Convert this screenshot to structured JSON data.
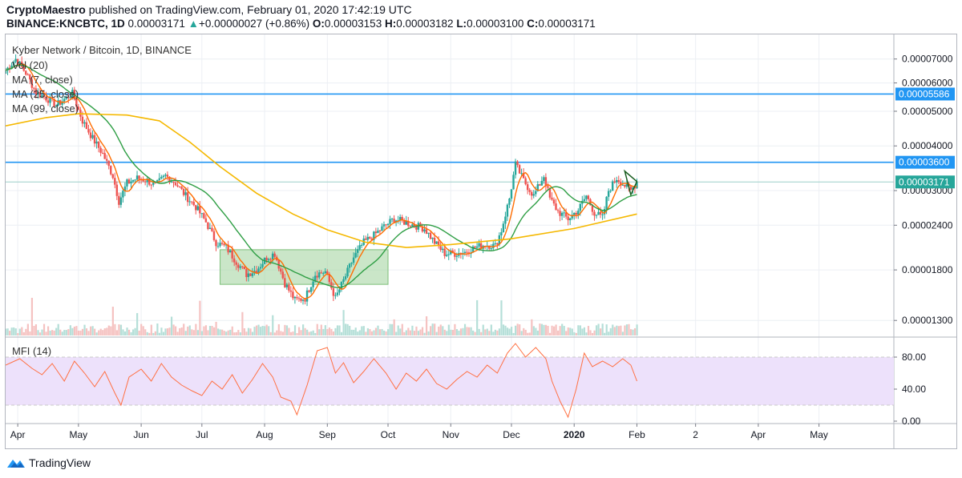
{
  "header": {
    "author": "CryptoMaestro",
    "published_text": "published on TradingView.com, February 01, 2020 17:42:19 UTC",
    "symbol": "BINANCE:KNCBTC, 1D",
    "last": "0.00003171",
    "change_arrow": "▲",
    "change": "+0.00000027 (+0.86%)",
    "o_label": "O:",
    "o": "0.00003153",
    "h_label": "H:",
    "h": "0.00003182",
    "l_label": "L:",
    "l": "0.00003100",
    "c_label": "C:",
    "c": "0.00003171"
  },
  "legend": {
    "title": "Kyber Network / Bitcoin, 1D, BINANCE",
    "vol": "Vol (20)",
    "ma7": "MA (7, close)",
    "ma25": "MA (25, close)",
    "ma99": "MA (99, close)",
    "mfi": "MFI (14)"
  },
  "footer": {
    "brand": "TradingView"
  },
  "colors": {
    "up": "#26a69a",
    "down": "#ef5350",
    "ma7": "#ff6d00",
    "ma25": "#2e9e44",
    "ma99": "#f5b800",
    "hline": "#2196f3",
    "mfi": "#ff7043",
    "mfi_band": "#ede1fb",
    "box": "#9fd29a",
    "wedge": "#1a5e20"
  },
  "chart_data": {
    "type": "candlestick",
    "price_axis": {
      "scale": "log",
      "ticks": [
        1.3e-05,
        1.8e-05,
        2.4e-05,
        3e-05,
        4e-05,
        5e-05,
        6e-05,
        7e-05
      ],
      "tick_labels": [
        "0.00001300",
        "0.00001800",
        "0.00002400",
        "0.00003000",
        "0.00004000",
        "0.00005000",
        "0.00006000",
        "0.00007000"
      ],
      "range": [
        1.18e-05,
        8.2e-05
      ]
    },
    "time_axis": {
      "range": [
        "2019-03-26",
        "2020-06-07"
      ],
      "ticks": [
        {
          "date": "2019-04-01",
          "label": "Apr"
        },
        {
          "date": "2019-05-01",
          "label": "May"
        },
        {
          "date": "2019-06-01",
          "label": "Jun"
        },
        {
          "date": "2019-07-01",
          "label": "Jul"
        },
        {
          "date": "2019-08-01",
          "label": "Aug"
        },
        {
          "date": "2019-09-01",
          "label": "Sep"
        },
        {
          "date": "2019-10-01",
          "label": "Oct"
        },
        {
          "date": "2019-11-01",
          "label": "Nov"
        },
        {
          "date": "2019-12-01",
          "label": "Dec"
        },
        {
          "date": "2020-01-01",
          "label": "2020"
        },
        {
          "date": "2020-02-01",
          "label": "Feb"
        },
        {
          "date": "2020-03-01",
          "label": "2"
        },
        {
          "date": "2020-04-01",
          "label": "Apr"
        },
        {
          "date": "2020-05-01",
          "label": "May"
        }
      ]
    },
    "horizontal_lines": [
      {
        "value": 5.586e-05,
        "label": "0.00005586"
      },
      {
        "value": 3.6e-05,
        "label": "0.00003600"
      }
    ],
    "last_price": {
      "value": 3.171e-05,
      "label": "0.00003171"
    },
    "close_anchors": [
      [
        "2019-03-26",
        6.5e-05
      ],
      [
        "2019-03-31",
        7e-05
      ],
      [
        "2019-04-05",
        6.4e-05
      ],
      [
        "2019-04-10",
        5.65e-05
      ],
      [
        "2019-04-15",
        5.45e-05
      ],
      [
        "2019-04-20",
        5.2e-05
      ],
      [
        "2019-04-25",
        5.45e-05
      ],
      [
        "2019-04-28",
        5.6e-05
      ],
      [
        "2019-05-03",
        4.7e-05
      ],
      [
        "2019-05-08",
        4.2e-05
      ],
      [
        "2019-05-13",
        3.8e-05
      ],
      [
        "2019-05-18",
        3.3e-05
      ],
      [
        "2019-05-21",
        2.8e-05
      ],
      [
        "2019-05-25",
        3.15e-05
      ],
      [
        "2019-05-30",
        3.25e-05
      ],
      [
        "2019-06-04",
        3.2e-05
      ],
      [
        "2019-06-08",
        3.1e-05
      ],
      [
        "2019-06-13",
        3.3e-05
      ],
      [
        "2019-06-18",
        3.15e-05
      ],
      [
        "2019-06-23",
        2.9e-05
      ],
      [
        "2019-06-28",
        2.7e-05
      ],
      [
        "2019-07-03",
        2.45e-05
      ],
      [
        "2019-07-08",
        2.15e-05
      ],
      [
        "2019-07-13",
        2.08e-05
      ],
      [
        "2019-07-18",
        1.9e-05
      ],
      [
        "2019-07-23",
        1.75e-05
      ],
      [
        "2019-07-28",
        1.8e-05
      ],
      [
        "2019-08-02",
        1.95e-05
      ],
      [
        "2019-08-06",
        2e-05
      ],
      [
        "2019-08-11",
        1.65e-05
      ],
      [
        "2019-08-16",
        1.48e-05
      ],
      [
        "2019-08-21",
        1.5e-05
      ],
      [
        "2019-08-26",
        1.75e-05
      ],
      [
        "2019-08-31",
        1.78e-05
      ],
      [
        "2019-09-05",
        1.5e-05
      ],
      [
        "2019-09-09",
        1.68e-05
      ],
      [
        "2019-09-14",
        1.95e-05
      ],
      [
        "2019-09-19",
        2.15e-05
      ],
      [
        "2019-09-24",
        2.25e-05
      ],
      [
        "2019-09-29",
        2.38e-05
      ],
      [
        "2019-10-04",
        2.5e-05
      ],
      [
        "2019-10-09",
        2.45e-05
      ],
      [
        "2019-10-14",
        2.4e-05
      ],
      [
        "2019-10-19",
        2.35e-05
      ],
      [
        "2019-10-24",
        2.15e-05
      ],
      [
        "2019-10-29",
        2e-05
      ],
      [
        "2019-11-03",
        2e-05
      ],
      [
        "2019-11-08",
        2.02e-05
      ],
      [
        "2019-11-13",
        2.08e-05
      ],
      [
        "2019-11-18",
        2.12e-05
      ],
      [
        "2019-11-23",
        2.1e-05
      ],
      [
        "2019-11-26",
        2.32e-05
      ],
      [
        "2019-11-30",
        2.85e-05
      ],
      [
        "2019-12-03",
        3.55e-05
      ],
      [
        "2019-12-07",
        3.2e-05
      ],
      [
        "2019-12-12",
        2.9e-05
      ],
      [
        "2019-12-17",
        3.3e-05
      ],
      [
        "2019-12-20",
        2.85e-05
      ],
      [
        "2019-12-24",
        2.62e-05
      ],
      [
        "2019-12-29",
        2.5e-05
      ],
      [
        "2020-01-03",
        2.65e-05
      ],
      [
        "2020-01-07",
        2.9e-05
      ],
      [
        "2020-01-11",
        2.6e-05
      ],
      [
        "2020-01-15",
        2.52e-05
      ],
      [
        "2020-01-18",
        3e-05
      ],
      [
        "2020-01-22",
        3.25e-05
      ],
      [
        "2020-01-26",
        3.1e-05
      ],
      [
        "2020-01-29",
        3e-05
      ],
      [
        "2020-02-01",
        3.17e-05
      ]
    ],
    "series": [
      {
        "name": "MA (7, close)",
        "color": "#ff6d00"
      },
      {
        "name": "MA (25, close)",
        "color": "#2e9e44"
      },
      {
        "name": "MA (99, close)",
        "color": "#f5b800",
        "points": [
          [
            "2019-03-26",
            4.55e-05
          ],
          [
            "2019-04-15",
            4.8e-05
          ],
          [
            "2019-05-01",
            4.92e-05
          ],
          [
            "2019-05-25",
            4.88e-05
          ],
          [
            "2019-06-10",
            4.7e-05
          ],
          [
            "2019-06-25",
            4.1e-05
          ],
          [
            "2019-07-10",
            3.5e-05
          ],
          [
            "2019-07-28",
            2.95e-05
          ],
          [
            "2019-08-15",
            2.58e-05
          ],
          [
            "2019-09-01",
            2.33e-05
          ],
          [
            "2019-09-20",
            2.15e-05
          ],
          [
            "2019-10-10",
            2.08e-05
          ],
          [
            "2019-11-01",
            2.12e-05
          ],
          [
            "2019-12-01",
            2.2e-05
          ],
          [
            "2020-01-01",
            2.35e-05
          ],
          [
            "2020-02-01",
            2.58e-05
          ]
        ]
      }
    ],
    "indicator": {
      "name": "MFI (14)",
      "axis_ticks": [
        0,
        40,
        80
      ],
      "axis_labels": [
        "0.00",
        "40.00",
        "80.00"
      ],
      "band": [
        20,
        80
      ],
      "range": [
        -3,
        103
      ],
      "points": [
        [
          "2019-03-26",
          70
        ],
        [
          "2019-04-02",
          78
        ],
        [
          "2019-04-08",
          66
        ],
        [
          "2019-04-13",
          58
        ],
        [
          "2019-04-18",
          72
        ],
        [
          "2019-04-24",
          50
        ],
        [
          "2019-04-29",
          75
        ],
        [
          "2019-05-04",
          60
        ],
        [
          "2019-05-09",
          43
        ],
        [
          "2019-05-14",
          62
        ],
        [
          "2019-05-19",
          35
        ],
        [
          "2019-05-22",
          20
        ],
        [
          "2019-05-26",
          55
        ],
        [
          "2019-06-01",
          65
        ],
        [
          "2019-06-06",
          50
        ],
        [
          "2019-06-11",
          72
        ],
        [
          "2019-06-16",
          55
        ],
        [
          "2019-06-21",
          45
        ],
        [
          "2019-06-26",
          38
        ],
        [
          "2019-07-01",
          32
        ],
        [
          "2019-07-06",
          50
        ],
        [
          "2019-07-11",
          40
        ],
        [
          "2019-07-16",
          58
        ],
        [
          "2019-07-21",
          35
        ],
        [
          "2019-07-26",
          52
        ],
        [
          "2019-07-31",
          72
        ],
        [
          "2019-08-05",
          55
        ],
        [
          "2019-08-09",
          30
        ],
        [
          "2019-08-14",
          25
        ],
        [
          "2019-08-17",
          8
        ],
        [
          "2019-08-22",
          45
        ],
        [
          "2019-08-27",
          88
        ],
        [
          "2019-09-01",
          92
        ],
        [
          "2019-09-05",
          60
        ],
        [
          "2019-09-09",
          73
        ],
        [
          "2019-09-14",
          48
        ],
        [
          "2019-09-19",
          62
        ],
        [
          "2019-09-24",
          78
        ],
        [
          "2019-09-30",
          60
        ],
        [
          "2019-10-05",
          40
        ],
        [
          "2019-10-10",
          60
        ],
        [
          "2019-10-15",
          50
        ],
        [
          "2019-10-20",
          65
        ],
        [
          "2019-10-25",
          47
        ],
        [
          "2019-10-30",
          40
        ],
        [
          "2019-11-04",
          52
        ],
        [
          "2019-11-09",
          62
        ],
        [
          "2019-11-14",
          55
        ],
        [
          "2019-11-19",
          70
        ],
        [
          "2019-11-24",
          60
        ],
        [
          "2019-11-29",
          85
        ],
        [
          "2019-12-03",
          97
        ],
        [
          "2019-12-08",
          80
        ],
        [
          "2019-12-13",
          92
        ],
        [
          "2019-12-18",
          78
        ],
        [
          "2019-12-21",
          50
        ],
        [
          "2019-12-25",
          25
        ],
        [
          "2019-12-29",
          5
        ],
        [
          "2020-01-02",
          40
        ],
        [
          "2020-01-06",
          85
        ],
        [
          "2020-01-10",
          68
        ],
        [
          "2020-01-15",
          75
        ],
        [
          "2020-01-20",
          68
        ],
        [
          "2020-01-25",
          78
        ],
        [
          "2020-01-29",
          70
        ],
        [
          "2020-02-01",
          50
        ]
      ]
    },
    "annotations": [
      "accumulation box Jul–Oct",
      "wedge Jan–Feb"
    ]
  }
}
